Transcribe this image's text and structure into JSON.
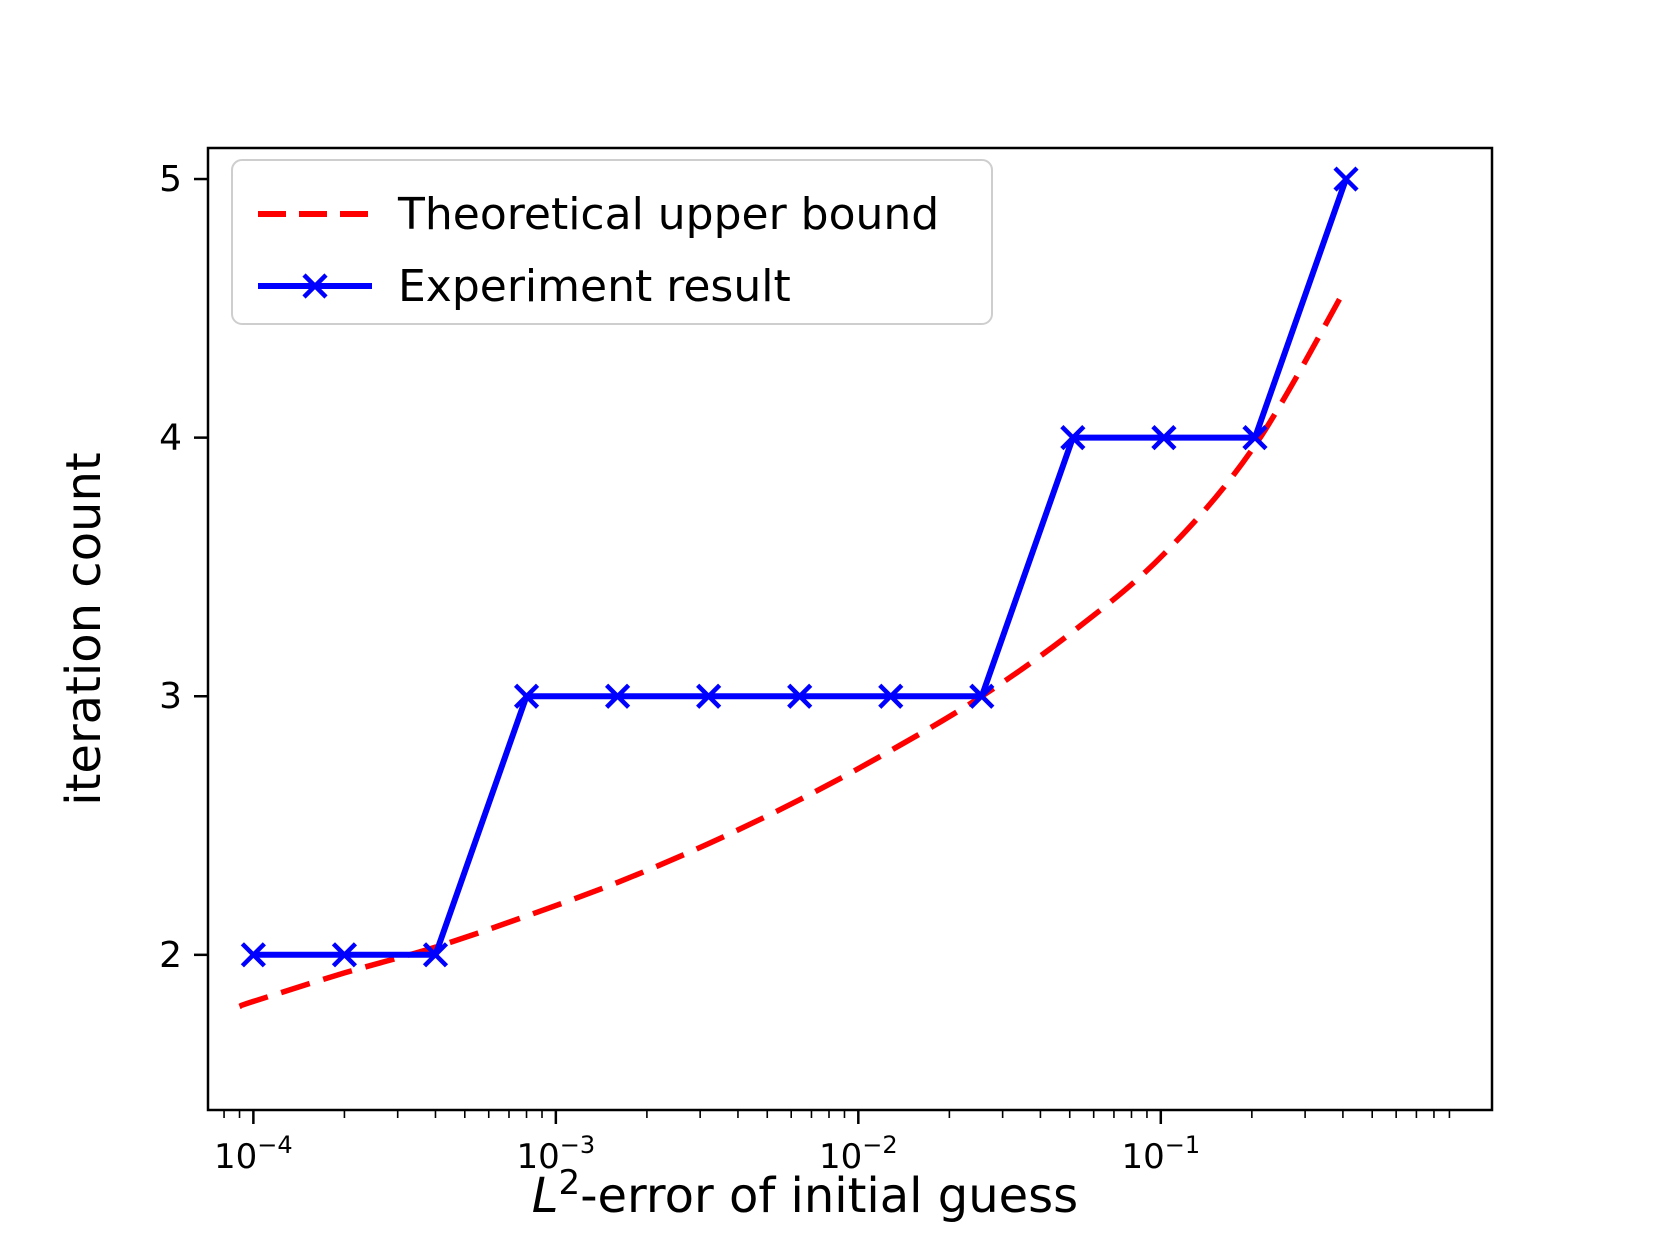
{
  "figure": {
    "background": "#ffffff"
  },
  "chart_data": {
    "type": "line",
    "title": "",
    "xlabel_parts": [
      {
        "t": "L",
        "italic": true
      },
      {
        "t": "2",
        "sup": true
      },
      {
        "t": "-error of initial guess"
      }
    ],
    "ylabel": "iteration count",
    "x_scale": "log",
    "x_log_range": [
      -4.15,
      0.095
    ],
    "y_range": [
      1.4,
      5.12
    ],
    "grid": false,
    "x_ticks": [
      {
        "value": 0.0001,
        "base": "10",
        "exp": "−4"
      },
      {
        "value": 0.001,
        "base": "10",
        "exp": "−3"
      },
      {
        "value": 0.01,
        "base": "10",
        "exp": "−2"
      },
      {
        "value": 0.1,
        "base": "10",
        "exp": "−1"
      }
    ],
    "y_ticks": [
      {
        "value": 2,
        "label": "2"
      },
      {
        "value": 3,
        "label": "3"
      },
      {
        "value": 4,
        "label": "4"
      },
      {
        "value": 5,
        "label": "5"
      }
    ],
    "series": [
      {
        "name": "Theoretical upper bound",
        "style": "dashed-curve",
        "color": "#ff0000",
        "x": [
          9e-05,
          0.0001,
          0.0002,
          0.0004,
          0.0008,
          0.0016,
          0.0032,
          0.0064,
          0.0128,
          0.0256,
          0.0512,
          0.1024,
          0.2048,
          0.4096
        ],
        "y": [
          1.8,
          1.82,
          1.93,
          2.03,
          2.15,
          2.28,
          2.43,
          2.6,
          2.79,
          3.0,
          3.25,
          3.55,
          3.97,
          4.58
        ]
      },
      {
        "name": "Experiment result",
        "style": "solid-x-markers",
        "color": "#0000ff",
        "x": [
          0.0001,
          0.0002,
          0.0004,
          0.0008,
          0.0016,
          0.0032,
          0.0064,
          0.0128,
          0.0256,
          0.0512,
          0.1024,
          0.2048,
          0.4096
        ],
        "y": [
          2,
          2,
          2,
          3,
          3,
          3,
          3,
          3,
          3,
          4,
          4,
          4,
          5
        ]
      }
    ],
    "legend": {
      "position": "upper left",
      "entries": [
        {
          "label": "Theoretical upper bound",
          "color": "#ff0000",
          "dashed": true,
          "marker": ""
        },
        {
          "label": "Experiment result",
          "color": "#0000ff",
          "dashed": false,
          "marker": "x"
        }
      ]
    }
  }
}
